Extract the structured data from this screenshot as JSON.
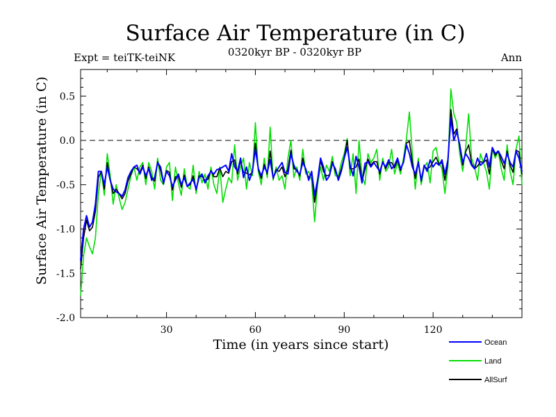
{
  "chart_data": {
    "type": "line",
    "title": "Surface Air Temperature (in C)",
    "subtitle_left": "Expt = teiTK-teiNK",
    "subtitle_center": "0320kyr BP - 0320kyr BP",
    "subtitle_right": "Ann",
    "xlabel": "Time (in years since start)",
    "ylabel": "Surface Air Temperature (in C)",
    "xlim": [
      1,
      150
    ],
    "ylim": [
      -2.0,
      0.8
    ],
    "xticks": [
      30,
      60,
      90,
      120
    ],
    "xtick_labels": [
      "30",
      "60",
      "90",
      "120"
    ],
    "yticks": [
      -2.0,
      -1.5,
      -1.0,
      -0.5,
      0.0,
      0.5
    ],
    "ytick_labels": [
      "-2.0",
      "-1.5",
      "-1.0",
      "-0.5",
      "0.0",
      "0.5"
    ],
    "reference_line": 0.0,
    "series": [
      {
        "name": "Ocean",
        "color": "#0000ff",
        "x": [
          1,
          2,
          3,
          4,
          5,
          6,
          7,
          8,
          9,
          10,
          11,
          12,
          13,
          14,
          15,
          16,
          17,
          18,
          19,
          20,
          21,
          22,
          23,
          24,
          25,
          26,
          27,
          28,
          29,
          30,
          31,
          32,
          33,
          34,
          35,
          36,
          37,
          38,
          39,
          40,
          41,
          42,
          43,
          44,
          45,
          46,
          47,
          48,
          49,
          50,
          51,
          52,
          53,
          54,
          55,
          56,
          57,
          58,
          59,
          60,
          61,
          62,
          63,
          64,
          65,
          66,
          67,
          68,
          69,
          70,
          71,
          72,
          73,
          74,
          75,
          76,
          77,
          78,
          79,
          80,
          81,
          82,
          83,
          84,
          85,
          86,
          87,
          88,
          89,
          90,
          91,
          92,
          93,
          94,
          95,
          96,
          97,
          98,
          99,
          100,
          101,
          102,
          103,
          104,
          105,
          106,
          107,
          108,
          109,
          110,
          111,
          112,
          113,
          114,
          115,
          116,
          117,
          118,
          119,
          120,
          121,
          122,
          123,
          124,
          125,
          126,
          127,
          128,
          129,
          130,
          131,
          132,
          133,
          134,
          135,
          136,
          137,
          138,
          139,
          140,
          141,
          142,
          143,
          144,
          145,
          146,
          147,
          148,
          149,
          150
        ],
        "values": [
          -1.35,
          -1.0,
          -0.85,
          -0.98,
          -0.92,
          -0.72,
          -0.35,
          -0.35,
          -0.5,
          -0.3,
          -0.45,
          -0.55,
          -0.58,
          -0.6,
          -0.63,
          -0.56,
          -0.42,
          -0.35,
          -0.3,
          -0.28,
          -0.38,
          -0.3,
          -0.4,
          -0.32,
          -0.45,
          -0.42,
          -0.25,
          -0.3,
          -0.48,
          -0.35,
          -0.4,
          -0.52,
          -0.45,
          -0.38,
          -0.5,
          -0.42,
          -0.52,
          -0.48,
          -0.44,
          -0.55,
          -0.42,
          -0.38,
          -0.48,
          -0.4,
          -0.35,
          -0.38,
          -0.33,
          -0.32,
          -0.3,
          -0.28,
          -0.35,
          -0.15,
          -0.3,
          -0.35,
          -0.2,
          -0.42,
          -0.3,
          -0.45,
          -0.35,
          -0.1,
          -0.32,
          -0.4,
          -0.3,
          -0.36,
          -0.22,
          -0.42,
          -0.35,
          -0.3,
          -0.25,
          -0.36,
          -0.38,
          -0.15,
          -0.28,
          -0.35,
          -0.38,
          -0.25,
          -0.32,
          -0.45,
          -0.35,
          -0.62,
          -0.45,
          -0.2,
          -0.3,
          -0.45,
          -0.4,
          -0.26,
          -0.32,
          -0.45,
          -0.35,
          -0.2,
          -0.08,
          -0.28,
          -0.4,
          -0.18,
          -0.3,
          -0.48,
          -0.26,
          -0.24,
          -0.3,
          -0.25,
          -0.3,
          -0.35,
          -0.25,
          -0.3,
          -0.22,
          -0.32,
          -0.28,
          -0.2,
          -0.32,
          -0.25,
          -0.05,
          -0.15,
          -0.3,
          -0.38,
          -0.25,
          -0.45,
          -0.28,
          -0.35,
          -0.22,
          -0.3,
          -0.25,
          -0.28,
          -0.22,
          -0.38,
          -0.22,
          0.25,
          0.0,
          0.1,
          -0.05,
          -0.25,
          -0.15,
          -0.2,
          -0.28,
          -0.32,
          -0.2,
          -0.28,
          -0.25,
          -0.15,
          -0.3,
          -0.08,
          -0.15,
          -0.12,
          -0.18,
          -0.26,
          -0.15,
          -0.25,
          -0.3,
          -0.12,
          -0.2,
          -0.35
        ]
      },
      {
        "name": "Land",
        "color": "#00dd00",
        "x": [
          1,
          2,
          3,
          4,
          5,
          6,
          7,
          8,
          9,
          10,
          11,
          12,
          13,
          14,
          15,
          16,
          17,
          18,
          19,
          20,
          21,
          22,
          23,
          24,
          25,
          26,
          27,
          28,
          29,
          30,
          31,
          32,
          33,
          34,
          35,
          36,
          37,
          38,
          39,
          40,
          41,
          42,
          43,
          44,
          45,
          46,
          47,
          48,
          49,
          50,
          51,
          52,
          53,
          54,
          55,
          56,
          57,
          58,
          59,
          60,
          61,
          62,
          63,
          64,
          65,
          66,
          67,
          68,
          69,
          70,
          71,
          72,
          73,
          74,
          75,
          76,
          77,
          78,
          79,
          80,
          81,
          82,
          83,
          84,
          85,
          86,
          87,
          88,
          89,
          90,
          91,
          92,
          93,
          94,
          95,
          96,
          97,
          98,
          99,
          100,
          101,
          102,
          103,
          104,
          105,
          106,
          107,
          108,
          109,
          110,
          111,
          112,
          113,
          114,
          115,
          116,
          117,
          118,
          119,
          120,
          121,
          122,
          123,
          124,
          125,
          126,
          127,
          128,
          129,
          130,
          131,
          132,
          133,
          134,
          135,
          136,
          137,
          138,
          139,
          140,
          141,
          142,
          143,
          144,
          145,
          146,
          147,
          148,
          149,
          150
        ],
        "values": [
          -1.75,
          -1.3,
          -1.1,
          -1.2,
          -1.28,
          -1.1,
          -0.6,
          -0.35,
          -0.62,
          -0.15,
          -0.4,
          -0.72,
          -0.5,
          -0.65,
          -0.78,
          -0.7,
          -0.55,
          -0.4,
          -0.3,
          -0.45,
          -0.3,
          -0.25,
          -0.5,
          -0.25,
          -0.35,
          -0.55,
          -0.2,
          -0.45,
          -0.5,
          -0.3,
          -0.25,
          -0.68,
          -0.3,
          -0.48,
          -0.62,
          -0.32,
          -0.52,
          -0.55,
          -0.28,
          -0.6,
          -0.35,
          -0.48,
          -0.38,
          -0.55,
          -0.3,
          -0.5,
          -0.6,
          -0.3,
          -0.7,
          -0.55,
          -0.42,
          -0.48,
          -0.05,
          -0.45,
          -0.3,
          -0.2,
          -0.55,
          -0.25,
          -0.4,
          0.2,
          -0.35,
          -0.5,
          -0.2,
          -0.42,
          0.15,
          -0.45,
          -0.3,
          -0.45,
          -0.4,
          -0.55,
          -0.2,
          0.0,
          -0.42,
          -0.3,
          -0.45,
          -0.1,
          -0.38,
          -0.35,
          -0.45,
          -0.92,
          -0.5,
          -0.3,
          -0.45,
          -0.28,
          -0.35,
          -0.18,
          -0.4,
          -0.4,
          -0.25,
          -0.15,
          0.02,
          -0.4,
          -0.15,
          -0.6,
          0.0,
          -0.4,
          -0.5,
          -0.15,
          -0.25,
          -0.2,
          -0.1,
          -0.45,
          -0.2,
          -0.35,
          -0.3,
          -0.1,
          -0.38,
          -0.25,
          -0.38,
          -0.2,
          0.02,
          0.32,
          -0.15,
          -0.55,
          -0.2,
          -0.5,
          -0.3,
          -0.25,
          -0.48,
          -0.12,
          -0.08,
          -0.25,
          -0.32,
          -0.6,
          -0.3,
          0.58,
          0.3,
          0.2,
          -0.15,
          -0.35,
          -0.08,
          0.3,
          -0.2,
          -0.3,
          -0.45,
          -0.15,
          -0.25,
          -0.35,
          -0.55,
          -0.1,
          -0.2,
          -0.12,
          -0.32,
          -0.45,
          -0.05,
          -0.35,
          -0.5,
          -0.1,
          0.05,
          -0.5
        ]
      },
      {
        "name": "AllSurf",
        "color": "#000000",
        "x": [
          1,
          2,
          3,
          4,
          5,
          6,
          7,
          8,
          9,
          10,
          11,
          12,
          13,
          14,
          15,
          16,
          17,
          18,
          19,
          20,
          21,
          22,
          23,
          24,
          25,
          26,
          27,
          28,
          29,
          30,
          31,
          32,
          33,
          34,
          35,
          36,
          37,
          38,
          39,
          40,
          41,
          42,
          43,
          44,
          45,
          46,
          47,
          48,
          49,
          50,
          51,
          52,
          53,
          54,
          55,
          56,
          57,
          58,
          59,
          60,
          61,
          62,
          63,
          64,
          65,
          66,
          67,
          68,
          69,
          70,
          71,
          72,
          73,
          74,
          75,
          76,
          77,
          78,
          79,
          80,
          81,
          82,
          83,
          84,
          85,
          86,
          87,
          88,
          89,
          90,
          91,
          92,
          93,
          94,
          95,
          96,
          97,
          98,
          99,
          100,
          101,
          102,
          103,
          104,
          105,
          106,
          107,
          108,
          109,
          110,
          111,
          112,
          113,
          114,
          115,
          116,
          117,
          118,
          119,
          120,
          121,
          122,
          123,
          124,
          125,
          126,
          127,
          128,
          129,
          130,
          131,
          132,
          133,
          134,
          135,
          136,
          137,
          138,
          139,
          140,
          141,
          142,
          143,
          144,
          145,
          146,
          147,
          148,
          149,
          150
        ],
        "values": [
          -1.45,
          -1.1,
          -0.9,
          -1.02,
          -0.98,
          -0.8,
          -0.42,
          -0.35,
          -0.55,
          -0.25,
          -0.45,
          -0.6,
          -0.55,
          -0.6,
          -0.66,
          -0.6,
          -0.46,
          -0.38,
          -0.3,
          -0.32,
          -0.36,
          -0.28,
          -0.43,
          -0.3,
          -0.42,
          -0.46,
          -0.24,
          -0.34,
          -0.49,
          -0.34,
          -0.36,
          -0.56,
          -0.41,
          -0.41,
          -0.53,
          -0.39,
          -0.52,
          -0.5,
          -0.4,
          -0.56,
          -0.4,
          -0.41,
          -0.45,
          -0.44,
          -0.34,
          -0.41,
          -0.41,
          -0.31,
          -0.41,
          -0.35,
          -0.37,
          -0.24,
          -0.22,
          -0.38,
          -0.23,
          -0.36,
          -0.37,
          -0.39,
          -0.36,
          -0.03,
          -0.33,
          -0.43,
          -0.27,
          -0.38,
          -0.12,
          -0.43,
          -0.33,
          -0.35,
          -0.3,
          -0.41,
          -0.32,
          -0.11,
          -0.32,
          -0.33,
          -0.4,
          -0.2,
          -0.34,
          -0.42,
          -0.38,
          -0.7,
          -0.47,
          -0.23,
          -0.35,
          -0.4,
          -0.39,
          -0.24,
          -0.35,
          -0.43,
          -0.32,
          -0.19,
          0.0,
          -0.32,
          -0.32,
          -0.3,
          -0.21,
          -0.46,
          -0.33,
          -0.21,
          -0.28,
          -0.24,
          -0.24,
          -0.38,
          -0.24,
          -0.32,
          -0.25,
          -0.25,
          -0.31,
          -0.22,
          -0.34,
          -0.24,
          -0.03,
          -0.01,
          -0.25,
          -0.43,
          -0.24,
          -0.46,
          -0.29,
          -0.32,
          -0.3,
          -0.24,
          -0.19,
          -0.27,
          -0.25,
          -0.45,
          -0.25,
          0.35,
          0.07,
          0.13,
          -0.08,
          -0.28,
          -0.13,
          -0.05,
          -0.26,
          -0.32,
          -0.29,
          -0.24,
          -0.25,
          -0.22,
          -0.38,
          -0.09,
          -0.17,
          -0.12,
          -0.23,
          -0.32,
          -0.12,
          -0.28,
          -0.36,
          -0.11,
          -0.13,
          -0.38
        ]
      }
    ]
  }
}
